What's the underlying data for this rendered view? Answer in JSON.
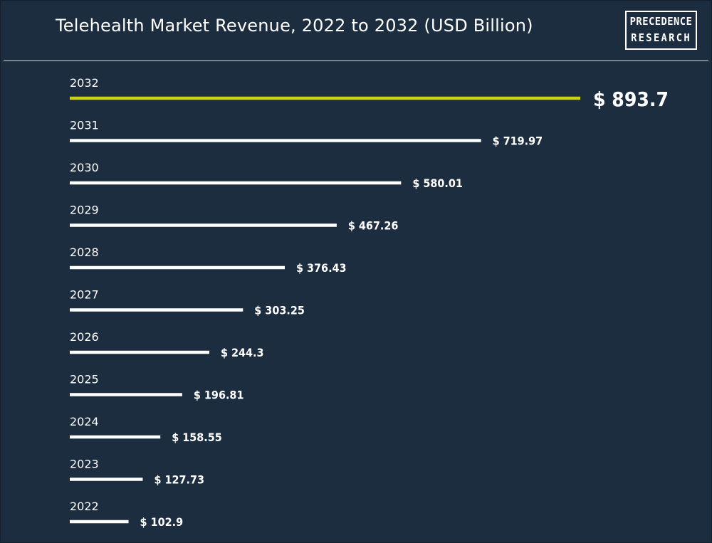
{
  "title": "Telehealth Market Revenue, 2022 to 2032 (USD Billion)",
  "logo": {
    "line1": "PRECEDENCE",
    "line2": "RESEARCH"
  },
  "colors": {
    "background": "#1c2d40",
    "bar": "#ffffff",
    "highlight": "#c8d219",
    "text": "#ffffff"
  },
  "chart_data": {
    "type": "bar",
    "orientation": "horizontal",
    "title": "Telehealth Market Revenue, 2022 to 2032 (USD Billion)",
    "categories": [
      "2032",
      "2031",
      "2030",
      "2029",
      "2028",
      "2027",
      "2026",
      "2025",
      "2024",
      "2023",
      "2022"
    ],
    "values": [
      893.7,
      719.97,
      580.01,
      467.26,
      376.43,
      303.25,
      244.3,
      196.81,
      158.55,
      127.73,
      102.9
    ],
    "value_labels": [
      "$ 893.7",
      "$ 719.97",
      "$ 580.01",
      "$ 467.26",
      "$ 376.43",
      "$ 303.25",
      "$ 244.3",
      "$ 196.81",
      "$ 158.55",
      "$ 127.73",
      "$ 102.9"
    ],
    "highlight_category": "2032",
    "grid": false
  }
}
